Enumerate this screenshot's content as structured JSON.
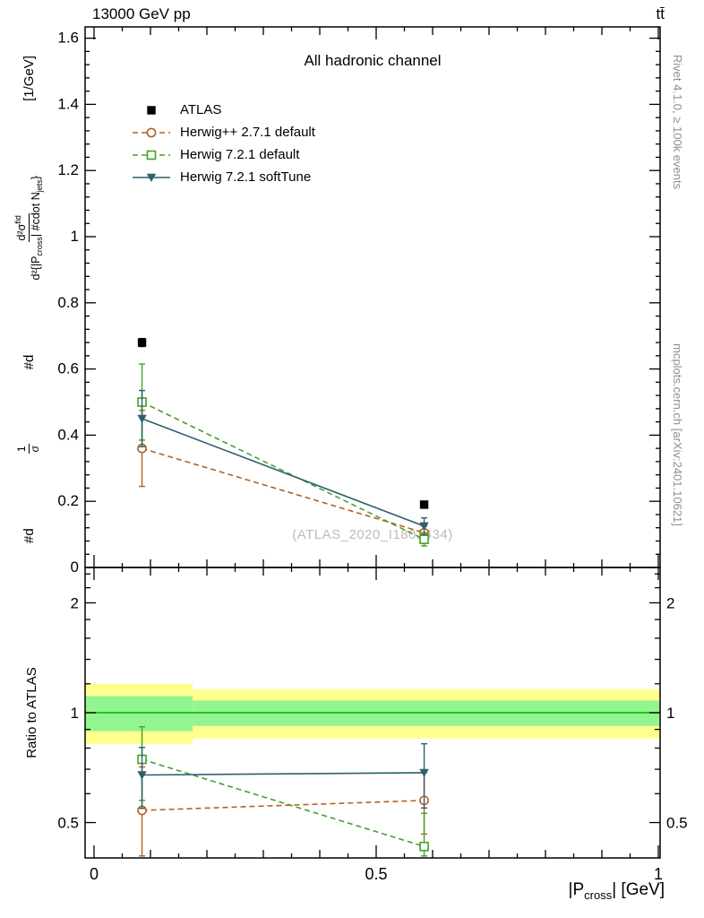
{
  "header": {
    "left": "13000 GeV pp",
    "right": "tt̄"
  },
  "side_texts": {
    "right_top": "Rivet 4.1.0, ≥ 100k events",
    "right_bottom": "mcplots.cern.ch [arXiv:2401.10621]"
  },
  "watermark": "(ATLAS_2020_I1801434)",
  "axis_labels": {
    "ratio_y": "Ratio to ATLAS",
    "x_prefix": "|P",
    "x_sub": "cross",
    "x_suffix": "| [GeV]",
    "main_y": {
      "p1": "#d",
      "f1_num": "1",
      "f1_den": "σ",
      "p2": "#d",
      "f2_num_base": "d²σ",
      "f2_num_sup": "fid",
      "f2_den_a": "d²{|P",
      "f2_den_sub_a": "cross",
      "f2_den_b": "| #cdot N",
      "f2_den_sub_b": "jets",
      "f2_den_c": "}",
      "p3": "[1/GeV]"
    }
  },
  "colors": {
    "frame": "#000000",
    "band_yellow": "#ffff8e",
    "band_green": "#93f58f",
    "ref_green": "#00b300",
    "watermark": "#bcbcbc",
    "side_text": "#8f8f8f"
  },
  "chart_data": {
    "type": "scatter",
    "title": "All hadronic channel",
    "xlabel": "|P_cross| [GeV]",
    "xlim": [
      -0.016,
      1.003
    ],
    "x_major_ticks": [
      {
        "v": 0,
        "label": "0"
      },
      {
        "v": 0.5,
        "label": "0.5"
      },
      {
        "v": 1,
        "label": "1"
      }
    ],
    "main": {
      "ylim": [
        0,
        1.634
      ],
      "y_major_ticks": [
        {
          "v": 0,
          "label": "0"
        },
        {
          "v": 0.2,
          "label": "0.2"
        },
        {
          "v": 0.4,
          "label": "0.4"
        },
        {
          "v": 0.6,
          "label": "0.6"
        },
        {
          "v": 0.8,
          "label": "0.8"
        },
        {
          "v": 1,
          "label": "1"
        },
        {
          "v": 1.2,
          "label": "1.2"
        },
        {
          "v": 1.4,
          "label": "1.4"
        },
        {
          "v": 1.6,
          "label": "1.6"
        }
      ]
    },
    "ratio": {
      "yscale": "log",
      "ylim": [
        0.4,
        2.5
      ],
      "ref_line": 1,
      "y_major_ticks": [
        {
          "v": 0.5,
          "label": "0.5"
        },
        {
          "v": 1,
          "label": "1"
        },
        {
          "v": 2,
          "label": "2"
        }
      ],
      "y_minor_ticks": [
        0.6,
        0.7,
        0.8,
        0.9,
        1.2,
        1.4,
        1.6,
        1.8,
        2.2,
        2.4
      ],
      "bands": [
        {
          "x_range": [
            -0.016,
            0.175
          ],
          "yellow": [
            0.82,
            1.2
          ],
          "green": [
            0.89,
            1.11
          ]
        },
        {
          "x_range": [
            0.175,
            1.003
          ],
          "yellow": [
            0.85,
            1.16
          ],
          "green": [
            0.92,
            1.08
          ]
        }
      ]
    },
    "series": [
      {
        "name": "ATLAS",
        "color": "#000000",
        "line": "none",
        "marker": "square-filled",
        "x": [
          0.085,
          0.585
        ],
        "y": [
          0.68,
          0.19
        ],
        "yerr": [
          0.012,
          0.008
        ],
        "show_in_ratio": false
      },
      {
        "name": "Herwig++ 2.7.1 default",
        "color": "#b5601c",
        "line": "dashed",
        "marker": "circle-open",
        "x": [
          0.085,
          0.585
        ],
        "y": [
          0.36,
          0.105
        ],
        "yerr": [
          0.115,
          0.02
        ],
        "ratio": [
          0.54,
          0.575
        ],
        "ratio_err": [
          0.17,
          0.11
        ],
        "show_in_ratio": true
      },
      {
        "name": "Herwig 7.2.1 default",
        "color": "#44a12b",
        "line": "dashed",
        "marker": "square-open",
        "x": [
          0.085,
          0.585
        ],
        "y": [
          0.5,
          0.085
        ],
        "yerr": [
          0.115,
          0.02
        ],
        "ratio": [
          0.745,
          0.43
        ],
        "ratio_err": [
          0.17,
          0.1
        ],
        "show_in_ratio": true
      },
      {
        "name": "Herwig 7.2.1 softTune",
        "color": "#2d5f6e",
        "line": "solid",
        "marker": "triangle-down-filled",
        "x": [
          0.085,
          0.585
        ],
        "y": [
          0.45,
          0.125
        ],
        "yerr": [
          0.085,
          0.025
        ],
        "ratio": [
          0.675,
          0.685
        ],
        "ratio_err": [
          0.128,
          0.137
        ],
        "show_in_ratio": true
      }
    ]
  }
}
